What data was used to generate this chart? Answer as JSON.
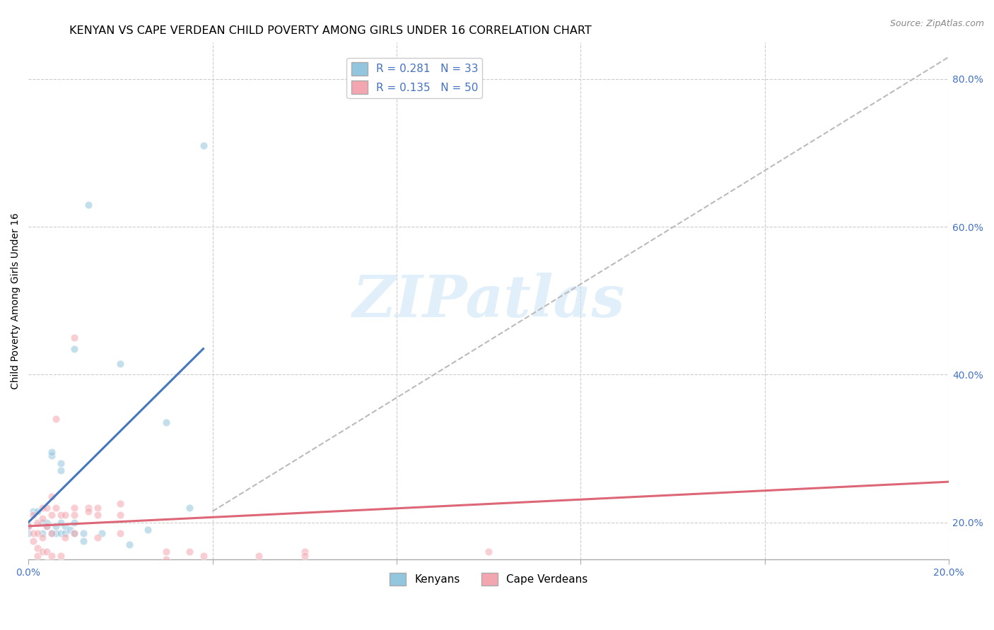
{
  "title": "KENYAN VS CAPE VERDEAN CHILD POVERTY AMONG GIRLS UNDER 16 CORRELATION CHART",
  "source": "Source: ZipAtlas.com",
  "ylabel": "Child Poverty Among Girls Under 16",
  "xlim": [
    0.0,
    0.2
  ],
  "ylim": [
    0.15,
    0.85
  ],
  "xticks": [
    0.0,
    0.04,
    0.08,
    0.12,
    0.16,
    0.2
  ],
  "xtick_labels": [
    "0.0%",
    "",
    "",
    "",
    "",
    "20.0%"
  ],
  "yticks_right": [
    0.2,
    0.4,
    0.6,
    0.8
  ],
  "ytick_labels_right": [
    "20.0%",
    "40.0%",
    "60.0%",
    "80.0%"
  ],
  "legend_r1": "R = 0.281",
  "legend_n1": "N = 33",
  "legend_r2": "R = 0.135",
  "legend_n2": "N = 50",
  "kenyan_color": "#92c5de",
  "capeverdean_color": "#f4a6b0",
  "kenyan_line_color": "#4477bb",
  "capeverdean_line_color": "#dd6677",
  "dashed_line_color": "#bbbbbb",
  "kenyan_scatter": [
    [
      0.001,
      0.215
    ],
    [
      0.002,
      0.215
    ],
    [
      0.003,
      0.2
    ],
    [
      0.003,
      0.185
    ],
    [
      0.004,
      0.195
    ],
    [
      0.004,
      0.2
    ],
    [
      0.005,
      0.29
    ],
    [
      0.005,
      0.295
    ],
    [
      0.005,
      0.185
    ],
    [
      0.006,
      0.185
    ],
    [
      0.006,
      0.195
    ],
    [
      0.007,
      0.28
    ],
    [
      0.007,
      0.27
    ],
    [
      0.007,
      0.185
    ],
    [
      0.007,
      0.2
    ],
    [
      0.008,
      0.185
    ],
    [
      0.008,
      0.195
    ],
    [
      0.009,
      0.19
    ],
    [
      0.01,
      0.435
    ],
    [
      0.01,
      0.185
    ],
    [
      0.01,
      0.2
    ],
    [
      0.012,
      0.185
    ],
    [
      0.012,
      0.175
    ],
    [
      0.013,
      0.63
    ],
    [
      0.016,
      0.185
    ],
    [
      0.02,
      0.415
    ],
    [
      0.022,
      0.17
    ],
    [
      0.026,
      0.19
    ],
    [
      0.03,
      0.335
    ],
    [
      0.035,
      0.22
    ],
    [
      0.038,
      0.71
    ],
    [
      0.0,
      0.195
    ],
    [
      0.0,
      0.185
    ]
  ],
  "capeverdean_scatter": [
    [
      0.0,
      0.195
    ],
    [
      0.001,
      0.21
    ],
    [
      0.001,
      0.185
    ],
    [
      0.001,
      0.175
    ],
    [
      0.002,
      0.185
    ],
    [
      0.002,
      0.2
    ],
    [
      0.002,
      0.165
    ],
    [
      0.002,
      0.155
    ],
    [
      0.003,
      0.22
    ],
    [
      0.003,
      0.205
    ],
    [
      0.003,
      0.18
    ],
    [
      0.003,
      0.16
    ],
    [
      0.004,
      0.22
    ],
    [
      0.004,
      0.195
    ],
    [
      0.004,
      0.16
    ],
    [
      0.004,
      0.145
    ],
    [
      0.005,
      0.235
    ],
    [
      0.005,
      0.21
    ],
    [
      0.005,
      0.185
    ],
    [
      0.005,
      0.155
    ],
    [
      0.006,
      0.34
    ],
    [
      0.006,
      0.22
    ],
    [
      0.007,
      0.21
    ],
    [
      0.007,
      0.155
    ],
    [
      0.007,
      0.145
    ],
    [
      0.008,
      0.21
    ],
    [
      0.008,
      0.18
    ],
    [
      0.01,
      0.45
    ],
    [
      0.01,
      0.22
    ],
    [
      0.01,
      0.21
    ],
    [
      0.01,
      0.185
    ],
    [
      0.013,
      0.22
    ],
    [
      0.013,
      0.215
    ],
    [
      0.015,
      0.22
    ],
    [
      0.015,
      0.21
    ],
    [
      0.015,
      0.18
    ],
    [
      0.02,
      0.225
    ],
    [
      0.02,
      0.185
    ],
    [
      0.02,
      0.21
    ],
    [
      0.025,
      0.125
    ],
    [
      0.025,
      0.135
    ],
    [
      0.03,
      0.16
    ],
    [
      0.03,
      0.15
    ],
    [
      0.035,
      0.16
    ],
    [
      0.038,
      0.155
    ],
    [
      0.05,
      0.155
    ],
    [
      0.06,
      0.16
    ],
    [
      0.06,
      0.155
    ],
    [
      0.1,
      0.16
    ]
  ],
  "kenyan_line": {
    "x0": 0.0,
    "y0": 0.2,
    "x1": 0.038,
    "y1": 0.435
  },
  "capeverdean_line": {
    "x0": 0.0,
    "y0": 0.195,
    "x1": 0.2,
    "y1": 0.255
  },
  "dashed_line": {
    "x0": 0.04,
    "y0": 0.215,
    "x1": 0.2,
    "y1": 0.83
  },
  "background_color": "#ffffff",
  "grid_color": "#cccccc",
  "title_fontsize": 11.5,
  "axis_label_fontsize": 10,
  "tick_fontsize": 10,
  "scatter_size": 60,
  "scatter_alpha": 0.55,
  "watermark_text": "ZIPatlas",
  "watermark_color": "#cce5f5",
  "watermark_alpha": 0.6,
  "watermark_fontsize": 60
}
